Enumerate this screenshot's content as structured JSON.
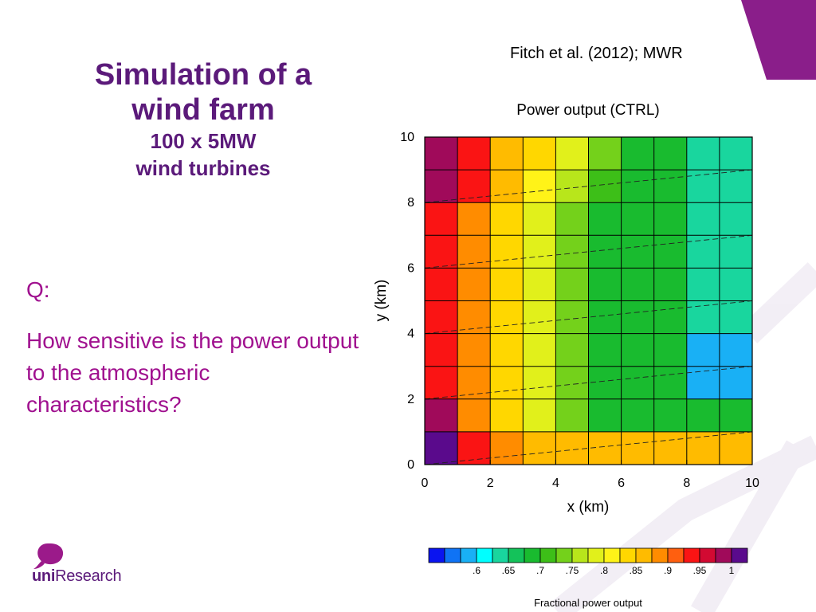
{
  "slide": {
    "title_line1": "Simulation of a",
    "title_line2": "wind farm",
    "subtitle_line1": "100 x 5MW",
    "subtitle_line2": "wind turbines",
    "citation": "Fitch et al. (2012); MWR",
    "question_label": "Q:",
    "question_text": "How sensitive is the power output to the atmospheric characteristics?",
    "logo_text_bold": "uni",
    "logo_text_regular": "Research",
    "accent_color": "#a0118f",
    "title_color": "#5b1a7a"
  },
  "chart_data": {
    "type": "heatmap",
    "title": "Power output (CTRL)",
    "xlabel": "x (km)",
    "ylabel": "y (km)",
    "xlim": [
      0,
      10
    ],
    "ylim": [
      0,
      10
    ],
    "x_ticks": [
      "0",
      "2",
      "4",
      "6",
      "8",
      "10"
    ],
    "y_ticks": [
      "0",
      "2",
      "4",
      "6",
      "8",
      "10"
    ],
    "grid": true,
    "rows_from_top": [
      [
        0.975,
        0.93,
        0.85,
        0.825,
        0.775,
        0.725,
        0.675,
        0.675,
        0.625,
        0.625
      ],
      [
        0.975,
        0.925,
        0.85,
        0.8,
        0.75,
        0.7,
        0.675,
        0.675,
        0.625,
        0.625
      ],
      [
        0.925,
        0.875,
        0.825,
        0.775,
        0.725,
        0.675,
        0.675,
        0.675,
        0.625,
        0.625
      ],
      [
        0.925,
        0.875,
        0.825,
        0.775,
        0.725,
        0.675,
        0.675,
        0.675,
        0.625,
        0.625
      ],
      [
        0.925,
        0.875,
        0.825,
        0.775,
        0.725,
        0.675,
        0.675,
        0.675,
        0.625,
        0.625
      ],
      [
        0.925,
        0.875,
        0.825,
        0.775,
        0.725,
        0.675,
        0.675,
        0.675,
        0.625,
        0.625
      ],
      [
        0.925,
        0.875,
        0.825,
        0.775,
        0.725,
        0.675,
        0.675,
        0.675,
        0.575,
        0.575
      ],
      [
        0.925,
        0.875,
        0.825,
        0.775,
        0.725,
        0.675,
        0.675,
        0.675,
        0.575,
        0.575
      ],
      [
        0.975,
        0.875,
        0.825,
        0.775,
        0.725,
        0.675,
        0.675,
        0.675,
        0.675,
        0.675
      ],
      [
        1.0,
        0.925,
        0.875,
        0.85,
        0.85,
        0.85,
        0.85,
        0.85,
        0.85,
        0.85
      ]
    ],
    "turbine_row_lines": [
      [
        0.0,
        0.0,
        10.0,
        1.0
      ],
      [
        0.0,
        2.0,
        10.0,
        3.0
      ],
      [
        0.0,
        4.0,
        10.0,
        5.0
      ],
      [
        0.0,
        6.0,
        10.0,
        7.0
      ],
      [
        0.0,
        8.0,
        10.0,
        9.0
      ]
    ],
    "colorbar": {
      "label": "Fractional power output",
      "tick_labels": [
        ".6",
        ".65",
        ".7",
        ".75",
        ".8",
        ".85",
        ".9",
        ".95",
        "1"
      ],
      "tick_values": [
        0.6,
        0.65,
        0.7,
        0.75,
        0.8,
        0.85,
        0.9,
        0.95,
        1.0
      ],
      "bins": [
        {
          "low": 0.525,
          "high": 0.55,
          "color": "#0a14f0"
        },
        {
          "low": 0.55,
          "high": 0.575,
          "color": "#0f73f5"
        },
        {
          "low": 0.575,
          "high": 0.6,
          "color": "#19b0f5"
        },
        {
          "low": 0.6,
          "high": 0.625,
          "color": "#00ffff"
        },
        {
          "low": 0.625,
          "high": 0.65,
          "color": "#19d69e"
        },
        {
          "low": 0.65,
          "high": 0.675,
          "color": "#14c25a"
        },
        {
          "low": 0.675,
          "high": 0.7,
          "color": "#19bb2f"
        },
        {
          "low": 0.7,
          "high": 0.725,
          "color": "#3dbf18"
        },
        {
          "low": 0.725,
          "high": 0.75,
          "color": "#74d11b"
        },
        {
          "low": 0.75,
          "high": 0.775,
          "color": "#b8e61b"
        },
        {
          "low": 0.775,
          "high": 0.8,
          "color": "#e1f01b"
        },
        {
          "low": 0.8,
          "high": 0.825,
          "color": "#fff318"
        },
        {
          "low": 0.825,
          "high": 0.85,
          "color": "#ffd700"
        },
        {
          "low": 0.85,
          "high": 0.875,
          "color": "#ffbb00"
        },
        {
          "low": 0.875,
          "high": 0.9,
          "color": "#ff8c00"
        },
        {
          "low": 0.9,
          "high": 0.925,
          "color": "#ff5f0f"
        },
        {
          "low": 0.925,
          "high": 0.95,
          "color": "#fa1414"
        },
        {
          "low": 0.95,
          "high": 0.975,
          "color": "#d20a32"
        },
        {
          "low": 0.975,
          "high": 1.0,
          "color": "#a00a5a"
        },
        {
          "low": 1.0,
          "high": 1.025,
          "color": "#5a0a8c"
        }
      ]
    }
  }
}
